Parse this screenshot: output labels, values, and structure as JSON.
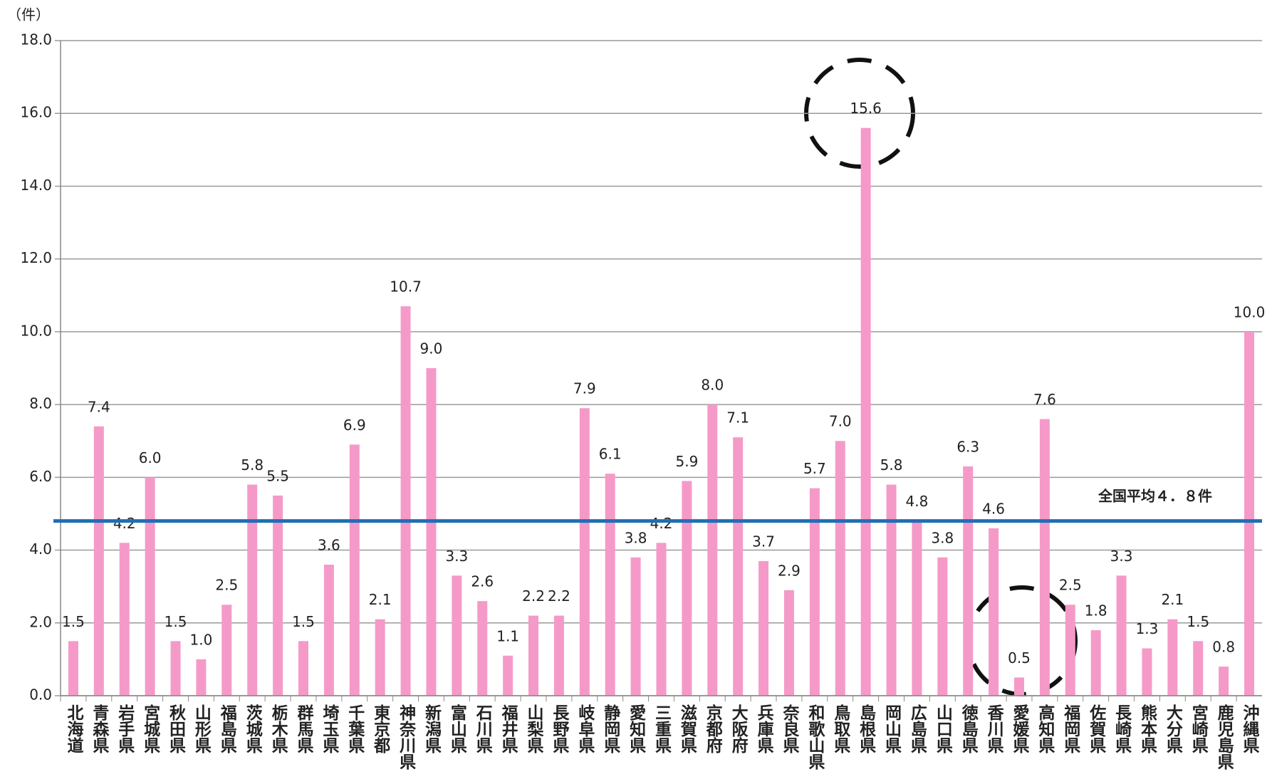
{
  "chart_data": {
    "type": "bar",
    "y_unit": "（件）",
    "categories": [
      "北海道",
      "青森県",
      "岩手県",
      "宮城県",
      "秋田県",
      "山形県",
      "福島県",
      "茨城県",
      "栃木県",
      "群馬県",
      "埼玉県",
      "千葉県",
      "東京都",
      "神奈川県",
      "新潟県",
      "富山県",
      "石川県",
      "福井県",
      "山梨県",
      "長野県",
      "岐阜県",
      "静岡県",
      "愛知県",
      "三重県",
      "滋賀県",
      "京都府",
      "大阪府",
      "兵庫県",
      "奈良県",
      "和歌山県",
      "鳥取県",
      "島根県",
      "岡山県",
      "広島県",
      "山口県",
      "徳島県",
      "香川県",
      "愛媛県",
      "高知県",
      "福岡県",
      "佐賀県",
      "長崎県",
      "熊本県",
      "大分県",
      "宮崎県",
      "鹿児島県",
      "沖縄県"
    ],
    "values": [
      1.5,
      7.4,
      4.2,
      6.0,
      1.5,
      1.0,
      2.5,
      5.8,
      5.5,
      1.5,
      3.6,
      6.9,
      2.1,
      10.7,
      9.0,
      3.3,
      2.6,
      1.1,
      2.2,
      2.2,
      7.9,
      6.1,
      3.8,
      4.2,
      5.9,
      8.0,
      7.1,
      3.7,
      2.9,
      5.7,
      7.0,
      15.6,
      5.8,
      4.8,
      3.8,
      6.3,
      4.6,
      0.5,
      7.6,
      2.5,
      1.8,
      3.3,
      1.3,
      2.1,
      1.5,
      0.8,
      10.0
    ],
    "value_labels": [
      "1.5",
      "7.4",
      "4.2",
      "6.0",
      "1.5",
      "1.0",
      "2.5",
      "5.8",
      "5.5",
      "1.5",
      "3.6",
      "6.9",
      "2.1",
      "10.7",
      "9.0",
      "3.3",
      "2.6",
      "1.1",
      "2.2",
      "2.2",
      "7.9",
      "6.1",
      "3.8",
      "4.2",
      "5.9",
      "8.0",
      "7.1",
      "3.7",
      "2.9",
      "5.7",
      "7.0",
      "15.6",
      "5.8",
      "4.8",
      "3.8",
      "6.3",
      "4.6",
      "0.5",
      "7.6",
      "2.5",
      "1.8",
      "3.3",
      "1.3",
      "2.1",
      "1.5",
      "0.8",
      "10.0"
    ],
    "color": "#f59ac8",
    "ylim": [
      0,
      18
    ],
    "yticks": [
      {
        "value": 0,
        "label": "0.0"
      },
      {
        "value": 2,
        "label": "2.0"
      },
      {
        "value": 4,
        "label": "4.0"
      },
      {
        "value": 6,
        "label": "6.0"
      },
      {
        "value": 8,
        "label": "8.0"
      },
      {
        "value": 10,
        "label": "10.0"
      },
      {
        "value": 12,
        "label": "12.0"
      },
      {
        "value": 14,
        "label": "14.0"
      },
      {
        "value": 16,
        "label": "16.0"
      },
      {
        "value": 18,
        "label": "18.0"
      }
    ],
    "grid": true,
    "average": {
      "value": 4.8,
      "label": "全国平均４．８件",
      "color": "#1f6eb4",
      "label_color": "#e0119e"
    }
  }
}
